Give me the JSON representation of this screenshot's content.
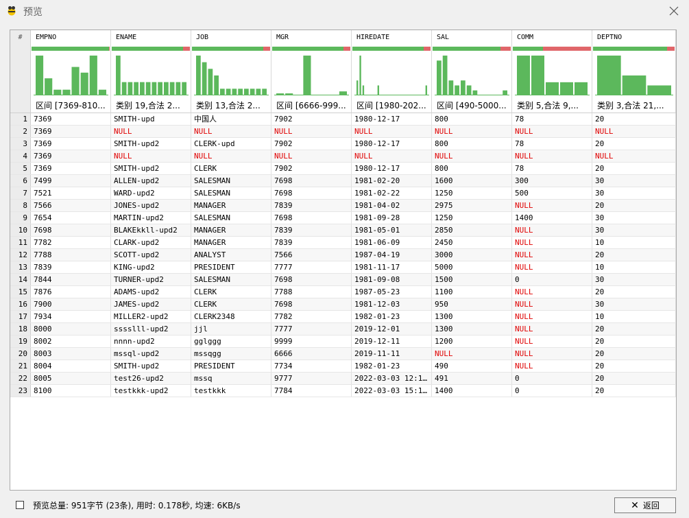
{
  "window": {
    "title": "预览"
  },
  "grid": {
    "rownum_header": "#",
    "columns": [
      {
        "name": "EMPNO",
        "summary": "区间 [7369-810...",
        "quality": 0.99,
        "hist": [
          7,
          3,
          1,
          1,
          5,
          4,
          7,
          1
        ]
      },
      {
        "name": "ENAME",
        "summary": "类别 19,合法 2...",
        "quality": 0.91,
        "hist": [
          3,
          1,
          1,
          1,
          1,
          1,
          1,
          1,
          1,
          1,
          1,
          1
        ]
      },
      {
        "name": "JOB",
        "summary": "类别 13,合法 2...",
        "quality": 0.91,
        "hist": [
          6,
          5,
          4,
          3,
          1,
          1,
          1,
          1,
          1,
          1,
          1,
          1
        ]
      },
      {
        "name": "MGR",
        "summary": "区间 [6666-999...",
        "quality": 0.91,
        "hist": [
          1,
          1,
          0,
          20,
          0,
          0,
          0,
          2
        ]
      },
      {
        "name": "HIREDATE",
        "summary": "区间 [1980-202...",
        "quality": 0.91,
        "hist": [
          3,
          8,
          2,
          0,
          0,
          0,
          0,
          2,
          0,
          0,
          0,
          0,
          0,
          0,
          0,
          0,
          0,
          0,
          0,
          0,
          0,
          0,
          0,
          2
        ]
      },
      {
        "name": "SAL",
        "summary": "区间 [490-5000...",
        "quality": 0.87,
        "hist": [
          7,
          8,
          3,
          2,
          3,
          2,
          1,
          0,
          0,
          0,
          0,
          1
        ]
      },
      {
        "name": "COMM",
        "summary": "类别 5,合法 9,...",
        "quality": 0.39,
        "hist": [
          1,
          1,
          0.33,
          0.33,
          0.33
        ]
      },
      {
        "name": "DEPTNO",
        "summary": "类别 3,合法 21,...",
        "quality": 0.91,
        "hist": [
          4,
          2,
          1
        ]
      }
    ],
    "rows": [
      [
        "1",
        "7369",
        "SMITH-upd",
        "中国人",
        "7902",
        "1980-12-17",
        "800",
        "78",
        "20"
      ],
      [
        "2",
        "7369",
        "NULL",
        "NULL",
        "NULL",
        "NULL",
        "NULL",
        "NULL",
        "NULL"
      ],
      [
        "3",
        "7369",
        "SMITH-upd2",
        "CLERK-upd",
        "7902",
        "1980-12-17",
        "800",
        "78",
        "20"
      ],
      [
        "4",
        "7369",
        "NULL",
        "NULL",
        "NULL",
        "NULL",
        "NULL",
        "NULL",
        "NULL"
      ],
      [
        "5",
        "7369",
        "SMITH-upd2",
        "CLERK",
        "7902",
        "1980-12-17",
        "800",
        "78",
        "20"
      ],
      [
        "6",
        "7499",
        "ALLEN-upd2",
        "SALESMAN",
        "7698",
        "1981-02-20",
        "1600",
        "300",
        "30"
      ],
      [
        "7",
        "7521",
        "WARD-upd2",
        "SALESMAN",
        "7698",
        "1981-02-22",
        "1250",
        "500",
        "30"
      ],
      [
        "8",
        "7566",
        "JONES-upd2",
        "MANAGER",
        "7839",
        "1981-04-02",
        "2975",
        "NULL",
        "20"
      ],
      [
        "9",
        "7654",
        "MARTIN-upd2",
        "SALESMAN",
        "7698",
        "1981-09-28",
        "1250",
        "1400",
        "30"
      ],
      [
        "10",
        "7698",
        "BLAKEkkll-upd2",
        "MANAGER",
        "7839",
        "1981-05-01",
        "2850",
        "NULL",
        "30"
      ],
      [
        "11",
        "7782",
        "CLARK-upd2",
        "MANAGER",
        "7839",
        "1981-06-09",
        "2450",
        "NULL",
        "10"
      ],
      [
        "12",
        "7788",
        "SCOTT-upd2",
        "ANALYST",
        "7566",
        "1987-04-19",
        "3000",
        "NULL",
        "20"
      ],
      [
        "13",
        "7839",
        "KING-upd2",
        "PRESIDENT",
        "7777",
        "1981-11-17",
        "5000",
        "NULL",
        "10"
      ],
      [
        "14",
        "7844",
        "TURNER-upd2",
        "SALESMAN",
        "7698",
        "1981-09-08",
        "1500",
        "0",
        "30"
      ],
      [
        "15",
        "7876",
        "ADAMS-upd2",
        "CLERK",
        "7788",
        "1987-05-23",
        "1100",
        "NULL",
        "20"
      ],
      [
        "16",
        "7900",
        "JAMES-upd2",
        "CLERK",
        "7698",
        "1981-12-03",
        "950",
        "NULL",
        "30"
      ],
      [
        "17",
        "7934",
        "MILLER2-upd2",
        "CLERK2348",
        "7782",
        "1982-01-23",
        "1300",
        "NULL",
        "10"
      ],
      [
        "18",
        "8000",
        "sssslll-upd2",
        "jjl",
        "7777",
        "2019-12-01",
        "1300",
        "NULL",
        "20"
      ],
      [
        "19",
        "8002",
        "nnnn-upd2",
        "gglggg",
        "9999",
        "2019-12-11",
        "1200",
        "NULL",
        "20"
      ],
      [
        "20",
        "8003",
        "mssql-upd2",
        "mssqgg",
        "6666",
        "2019-11-11",
        "NULL",
        "NULL",
        "20"
      ],
      [
        "21",
        "8004",
        "SMITH-upd2",
        "PRESIDENT",
        "7734",
        "1982-01-23",
        "490",
        "NULL",
        "20"
      ],
      [
        "22",
        "8005",
        "test26-upd2",
        "mssq",
        "9777",
        "2022-03-03 12:1...",
        "491",
        "0",
        "20"
      ],
      [
        "23",
        "8100",
        "testkkk-upd2",
        "testkkk",
        "7784",
        "2022-03-03 15:1...",
        "1400",
        "0",
        "20"
      ]
    ]
  },
  "footer": {
    "stats": "预览总量: 951字节 (23条), 用时: 0.178秒, 均速: 6KB/s",
    "back_label": "返回"
  },
  "colors": {
    "valid": "#5cb85c",
    "invalid": "#e0666a",
    "null_text": "#e00000"
  }
}
